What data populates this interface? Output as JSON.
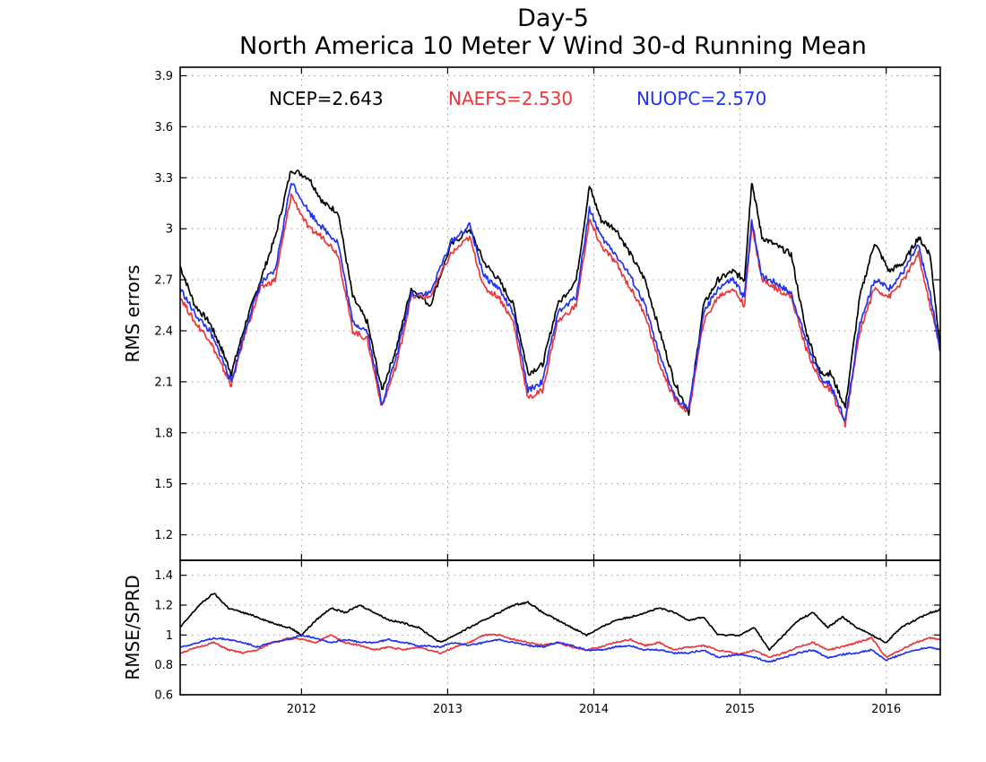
{
  "chart_data": [
    {
      "type": "line",
      "title": "Day-5",
      "subtitle": "North America 10 Meter V Wind 30-d Running Mean",
      "ylabel": "RMS errors",
      "xlabel": "",
      "ylim": [
        1.05,
        3.95
      ],
      "yticks": [
        "1.2",
        "1.5",
        "1.8",
        "2.1",
        "2.4",
        "2.7",
        "3",
        "3.3",
        "3.6",
        "3.9"
      ],
      "xlim": [
        2011.17,
        2016.37
      ],
      "xticks": [
        "2012",
        "2013",
        "2014",
        "2015",
        "2016"
      ],
      "grid": true,
      "legend_placement": "top",
      "legend": [
        {
          "label": "NCEP=2.643",
          "color": "#000000"
        },
        {
          "label": "NAEFS=2.530",
          "color": "#e8383c"
        },
        {
          "label": "NUOPC=2.570",
          "color": "#2233ee"
        }
      ],
      "series": [
        {
          "color": "#000000",
          "x": [
            2011.17,
            2011.27,
            2011.37,
            2011.45,
            2011.52,
            2011.62,
            2011.72,
            2011.82,
            2011.93,
            2012.05,
            2012.15,
            2012.25,
            2012.35,
            2012.45,
            2012.55,
            2012.65,
            2012.75,
            2012.88,
            2013.02,
            2013.15,
            2013.25,
            2013.35,
            2013.45,
            2013.55,
            2013.65,
            2013.75,
            2013.88,
            2013.97,
            2014.05,
            2014.15,
            2014.25,
            2014.35,
            2014.45,
            2014.55,
            2014.65,
            2014.75,
            2014.85,
            2014.95,
            2015.03,
            2015.08,
            2015.15,
            2015.25,
            2015.35,
            2015.45,
            2015.55,
            2015.62,
            2015.72,
            2015.82,
            2015.92,
            2016.02,
            2016.12,
            2016.22,
            2016.3,
            2016.37
          ],
          "y": [
            2.78,
            2.55,
            2.45,
            2.3,
            2.15,
            2.45,
            2.7,
            2.95,
            3.35,
            3.3,
            3.15,
            3.1,
            2.6,
            2.45,
            2.05,
            2.3,
            2.65,
            2.55,
            2.9,
            3.0,
            2.8,
            2.7,
            2.55,
            2.15,
            2.2,
            2.55,
            2.7,
            3.25,
            3.05,
            3.0,
            2.85,
            2.7,
            2.4,
            2.1,
            1.92,
            2.55,
            2.7,
            2.75,
            2.7,
            3.28,
            2.95,
            2.9,
            2.85,
            2.4,
            2.15,
            2.15,
            1.95,
            2.6,
            2.92,
            2.75,
            2.8,
            2.95,
            2.85,
            2.3
          ]
        },
        {
          "color": "#e8383c",
          "x": [
            2011.17,
            2011.27,
            2011.37,
            2011.45,
            2011.52,
            2011.62,
            2011.72,
            2011.82,
            2011.93,
            2012.05,
            2012.15,
            2012.25,
            2012.35,
            2012.45,
            2012.55,
            2012.65,
            2012.75,
            2012.88,
            2013.02,
            2013.15,
            2013.25,
            2013.35,
            2013.45,
            2013.55,
            2013.65,
            2013.75,
            2013.88,
            2013.97,
            2014.05,
            2014.15,
            2014.25,
            2014.35,
            2014.45,
            2014.55,
            2014.65,
            2014.75,
            2014.85,
            2014.95,
            2015.03,
            2015.08,
            2015.15,
            2015.25,
            2015.35,
            2015.45,
            2015.55,
            2015.62,
            2015.72,
            2015.82,
            2015.92,
            2016.02,
            2016.12,
            2016.22,
            2016.3,
            2016.37
          ],
          "y": [
            2.6,
            2.45,
            2.35,
            2.2,
            2.08,
            2.4,
            2.65,
            2.7,
            3.2,
            3.0,
            2.95,
            2.85,
            2.4,
            2.35,
            1.95,
            2.2,
            2.6,
            2.6,
            2.85,
            2.95,
            2.65,
            2.6,
            2.45,
            2.0,
            2.05,
            2.45,
            2.55,
            3.05,
            2.9,
            2.8,
            2.65,
            2.5,
            2.2,
            2.0,
            1.92,
            2.45,
            2.6,
            2.65,
            2.55,
            3.02,
            2.7,
            2.65,
            2.6,
            2.3,
            2.1,
            2.05,
            1.85,
            2.4,
            2.65,
            2.6,
            2.7,
            2.85,
            2.55,
            2.3
          ]
        },
        {
          "color": "#2233ee",
          "x": [
            2011.17,
            2011.27,
            2011.37,
            2011.45,
            2011.52,
            2011.62,
            2011.72,
            2011.82,
            2011.93,
            2012.05,
            2012.15,
            2012.25,
            2012.35,
            2012.45,
            2012.55,
            2012.65,
            2012.75,
            2012.88,
            2013.02,
            2013.15,
            2013.25,
            2013.35,
            2013.45,
            2013.55,
            2013.65,
            2013.75,
            2013.88,
            2013.97,
            2014.05,
            2014.15,
            2014.25,
            2014.35,
            2014.45,
            2014.55,
            2014.65,
            2014.75,
            2014.85,
            2014.95,
            2015.03,
            2015.08,
            2015.15,
            2015.25,
            2015.35,
            2015.45,
            2015.55,
            2015.62,
            2015.72,
            2015.82,
            2015.92,
            2016.02,
            2016.12,
            2016.22,
            2016.3,
            2016.37
          ],
          "y": [
            2.65,
            2.5,
            2.4,
            2.25,
            2.1,
            2.42,
            2.68,
            2.75,
            3.28,
            3.1,
            3.0,
            2.92,
            2.45,
            2.4,
            1.97,
            2.25,
            2.62,
            2.62,
            2.92,
            3.02,
            2.72,
            2.65,
            2.5,
            2.05,
            2.1,
            2.5,
            2.6,
            3.12,
            2.95,
            2.85,
            2.72,
            2.55,
            2.25,
            2.02,
            1.94,
            2.5,
            2.65,
            2.7,
            2.6,
            3.05,
            2.72,
            2.68,
            2.62,
            2.35,
            2.12,
            2.08,
            1.87,
            2.45,
            2.7,
            2.65,
            2.75,
            2.9,
            2.62,
            2.28
          ]
        }
      ]
    },
    {
      "type": "line",
      "title": "",
      "ylabel": "RMSE/SPRD",
      "xlabel": "",
      "ylim": [
        0.6,
        1.5
      ],
      "yticks": [
        "0.6",
        "0.8",
        "1",
        "1.2",
        "1.4"
      ],
      "xlim": [
        2011.17,
        2016.37
      ],
      "xticks": [
        "2012",
        "2013",
        "2014",
        "2015",
        "2016"
      ],
      "grid": true,
      "series": [
        {
          "color": "#000000",
          "x": [
            2011.17,
            2011.3,
            2011.4,
            2011.5,
            2011.6,
            2011.7,
            2011.8,
            2011.92,
            2012.0,
            2012.1,
            2012.2,
            2012.3,
            2012.4,
            2012.5,
            2012.6,
            2012.7,
            2012.8,
            2012.95,
            2013.05,
            2013.15,
            2013.25,
            2013.35,
            2013.45,
            2013.55,
            2013.65,
            2013.75,
            2013.85,
            2013.95,
            2014.05,
            2014.15,
            2014.25,
            2014.35,
            2014.45,
            2014.55,
            2014.65,
            2014.75,
            2014.85,
            2015.0,
            2015.1,
            2015.2,
            2015.3,
            2015.4,
            2015.5,
            2015.6,
            2015.7,
            2015.8,
            2015.9,
            2016.0,
            2016.1,
            2016.2,
            2016.3,
            2016.37
          ],
          "y": [
            1.05,
            1.2,
            1.28,
            1.18,
            1.15,
            1.12,
            1.08,
            1.05,
            1.0,
            1.1,
            1.18,
            1.15,
            1.2,
            1.15,
            1.1,
            1.08,
            1.05,
            0.95,
            1.0,
            1.05,
            1.1,
            1.15,
            1.2,
            1.22,
            1.15,
            1.1,
            1.05,
            1.0,
            1.05,
            1.1,
            1.12,
            1.15,
            1.18,
            1.15,
            1.1,
            1.12,
            1.0,
            1.0,
            1.05,
            0.9,
            1.0,
            1.1,
            1.15,
            1.05,
            1.12,
            1.05,
            1.0,
            0.95,
            1.05,
            1.1,
            1.15,
            1.17
          ]
        },
        {
          "color": "#e8383c",
          "x": [
            2011.17,
            2011.3,
            2011.4,
            2011.5,
            2011.6,
            2011.7,
            2011.8,
            2011.92,
            2012.0,
            2012.1,
            2012.2,
            2012.3,
            2012.4,
            2012.5,
            2012.6,
            2012.7,
            2012.8,
            2012.95,
            2013.05,
            2013.15,
            2013.25,
            2013.35,
            2013.45,
            2013.55,
            2013.65,
            2013.75,
            2013.85,
            2013.95,
            2014.05,
            2014.15,
            2014.25,
            2014.35,
            2014.45,
            2014.55,
            2014.65,
            2014.75,
            2014.85,
            2015.0,
            2015.1,
            2015.2,
            2015.3,
            2015.4,
            2015.5,
            2015.6,
            2015.7,
            2015.8,
            2015.9,
            2016.0,
            2016.1,
            2016.2,
            2016.3,
            2016.37
          ],
          "y": [
            0.88,
            0.92,
            0.95,
            0.9,
            0.88,
            0.9,
            0.95,
            0.98,
            0.97,
            0.95,
            1.0,
            0.95,
            0.93,
            0.9,
            0.92,
            0.9,
            0.92,
            0.88,
            0.92,
            0.95,
            1.0,
            1.0,
            0.97,
            0.95,
            0.93,
            0.95,
            0.92,
            0.9,
            0.92,
            0.95,
            0.97,
            0.93,
            0.95,
            0.9,
            0.92,
            0.93,
            0.9,
            0.87,
            0.9,
            0.85,
            0.88,
            0.92,
            0.95,
            0.9,
            0.92,
            0.95,
            0.98,
            0.85,
            0.9,
            0.95,
            0.98,
            0.97
          ]
        },
        {
          "color": "#2233ee",
          "x": [
            2011.17,
            2011.3,
            2011.4,
            2011.5,
            2011.6,
            2011.7,
            2011.8,
            2011.92,
            2012.0,
            2012.1,
            2012.2,
            2012.3,
            2012.4,
            2012.5,
            2012.6,
            2012.7,
            2012.8,
            2012.95,
            2013.05,
            2013.15,
            2013.25,
            2013.35,
            2013.45,
            2013.55,
            2013.65,
            2013.75,
            2013.85,
            2013.95,
            2014.05,
            2014.15,
            2014.25,
            2014.35,
            2014.45,
            2014.55,
            2014.65,
            2014.75,
            2014.85,
            2015.0,
            2015.1,
            2015.2,
            2015.3,
            2015.4,
            2015.5,
            2015.6,
            2015.7,
            2015.8,
            2015.9,
            2016.0,
            2016.1,
            2016.2,
            2016.3,
            2016.37
          ],
          "y": [
            0.92,
            0.95,
            0.98,
            0.97,
            0.95,
            0.92,
            0.95,
            0.97,
            1.0,
            0.98,
            0.95,
            0.97,
            0.95,
            0.95,
            0.97,
            0.95,
            0.93,
            0.92,
            0.95,
            0.93,
            0.95,
            0.97,
            0.95,
            0.93,
            0.92,
            0.95,
            0.93,
            0.9,
            0.9,
            0.92,
            0.93,
            0.9,
            0.9,
            0.88,
            0.88,
            0.9,
            0.85,
            0.87,
            0.85,
            0.82,
            0.85,
            0.88,
            0.9,
            0.85,
            0.87,
            0.88,
            0.9,
            0.83,
            0.87,
            0.9,
            0.92,
            0.9
          ]
        }
      ]
    }
  ]
}
